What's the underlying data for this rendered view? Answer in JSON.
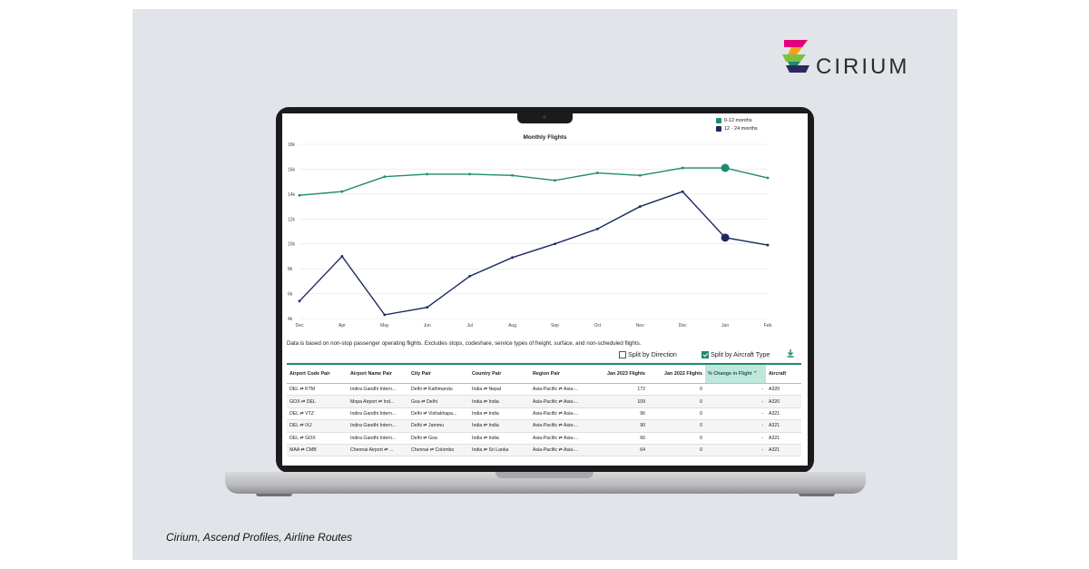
{
  "brand": {
    "name": "CIRIUM",
    "logo_colors": [
      "#e4007c",
      "#f4a11a",
      "#7fbf3f",
      "#1f8a6e",
      "#2a2a5e"
    ]
  },
  "caption": "Cirium, Ascend Profiles, Airline Routes",
  "chart_data": {
    "type": "line",
    "title": "Monthly Flights",
    "categories": [
      "Dec",
      "Apr",
      "May",
      "Jun",
      "Jul",
      "Aug",
      "Sep",
      "Oct",
      "Nov",
      "Dec",
      "Jan",
      "Feb"
    ],
    "y_ticks": [
      "4k",
      "6k",
      "8k",
      "10k",
      "12k",
      "14k",
      "16k",
      "18k"
    ],
    "ylim": [
      4000,
      18000
    ],
    "legend_position": "top-right",
    "grid": true,
    "series": [
      {
        "name": "0-12 months",
        "color": "#1f8a6e",
        "values": [
          13900,
          14200,
          15400,
          15600,
          15600,
          15500,
          15100,
          15700,
          15500,
          16100,
          16100,
          15300
        ]
      },
      {
        "name": "12 - 24 months",
        "color": "#1a2a5e",
        "values": [
          5400,
          9000,
          4300,
          4900,
          7400,
          8900,
          10000,
          11200,
          13000,
          14200,
          10500,
          9900
        ]
      }
    ],
    "highlight_index": 10
  },
  "note": "Data is based on non-stop passenger operating flights. Excludes stops, codeshare, service types of freight, surface, and non-scheduled flights.",
  "options": {
    "split_direction": {
      "label": "Split by Direction",
      "checked": false
    },
    "split_aircraft": {
      "label": "Split by Aircraft Type",
      "checked": true
    },
    "download_icon": "download-icon"
  },
  "table": {
    "headers": [
      "Airport Code Pair",
      "Airport Name Pair",
      "City Pair",
      "Country Pair",
      "Region Pair",
      "Jan 2023 Flights",
      "Jan 2022 Flights",
      "% Change in Flight",
      "Aircraft"
    ],
    "rows": [
      [
        "DEL ⇄ KTM",
        "Indira Gandhi Intern...",
        "Delhi ⇄ Kathmandu",
        "India ⇄ Nepal",
        "Asia-Pacific ⇄ Asia-...",
        "172",
        "0",
        "-",
        "A320"
      ],
      [
        "GOX ⇄ DEL",
        "Mopa Airport ⇄ Ind...",
        "Goa ⇄ Delhi",
        "India ⇄ India",
        "Asia-Pacific ⇄ Asia-...",
        "109",
        "0",
        "-",
        "A320"
      ],
      [
        "DEL ⇄ VTZ",
        "Indira Gandhi Intern...",
        "Delhi ⇄ Vishakhapa...",
        "India ⇄ India",
        "Asia-Pacific ⇄ Asia-...",
        "96",
        "0",
        "-",
        "A321"
      ],
      [
        "DEL ⇄ IXJ",
        "Indira Gandhi Intern...",
        "Delhi ⇄ Jammu",
        "India ⇄ India",
        "Asia-Pacific ⇄ Asia-...",
        "90",
        "0",
        "-",
        "A321"
      ],
      [
        "DEL ⇄ GOX",
        "Indira Gandhi Intern...",
        "Delhi ⇄ Goa",
        "India ⇄ India",
        "Asia-Pacific ⇄ Asia-...",
        "66",
        "0",
        "-",
        "A321"
      ],
      [
        "MAA ⇄ CMB",
        "Chennai Airport ⇄ ...",
        "Chennai ⇄ Colombo",
        "India ⇄ Sri Lanka",
        "Asia-Pacific ⇄ Asia-...",
        "64",
        "0",
        "-",
        "A321"
      ]
    ]
  }
}
